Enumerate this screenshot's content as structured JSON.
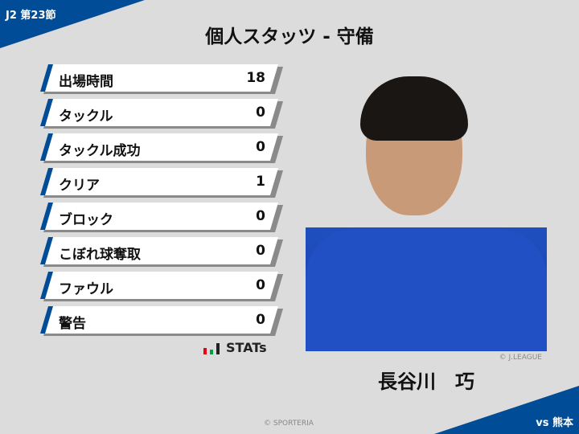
{
  "header": {
    "round": "J2 第23節",
    "title": "個人スタッツ - 守備"
  },
  "stats": [
    {
      "label": "出場時間",
      "value": "18"
    },
    {
      "label": "タックル",
      "value": "0"
    },
    {
      "label": "タックル成功",
      "value": "0"
    },
    {
      "label": "クリア",
      "value": "1"
    },
    {
      "label": "ブロック",
      "value": "0"
    },
    {
      "label": "こぼれ球奪取",
      "value": "0"
    },
    {
      "label": "ファウル",
      "value": "0"
    },
    {
      "label": "警告",
      "value": "0"
    }
  ],
  "brand": {
    "logo_text": "STATs",
    "colors": [
      "#e60012",
      "#00a040",
      "#222222"
    ]
  },
  "player": {
    "name": "長谷川　巧",
    "photo_credit": "© J.LEAGUE"
  },
  "footer": {
    "copyright": "© SPORTERIA",
    "opponent": "vs 熊本"
  },
  "accent": "#004c97"
}
